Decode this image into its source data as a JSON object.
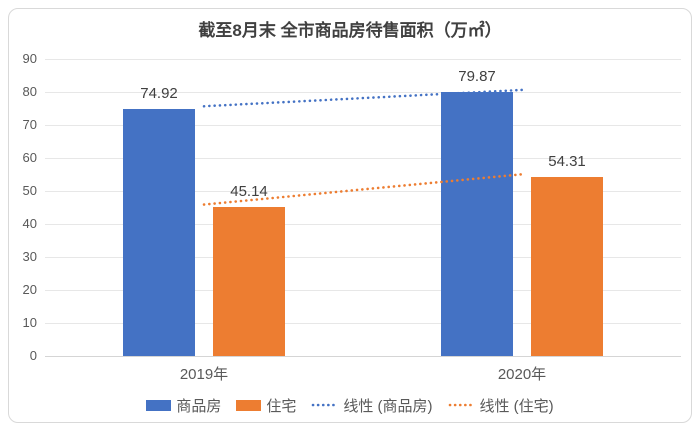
{
  "chart_data": {
    "type": "bar",
    "title": "截至8月末 全市商品房待售面积（万㎡）",
    "categories": [
      "2019年",
      "2020年"
    ],
    "series": [
      {
        "name": "商品房",
        "color": "#4472C4",
        "values": [
          74.92,
          79.87
        ],
        "labels": [
          "74.92",
          "79.87"
        ]
      },
      {
        "name": "住宅",
        "color": "#ED7D31",
        "values": [
          45.14,
          54.31
        ],
        "labels": [
          "45.14",
          "54.31"
        ]
      }
    ],
    "trendlines": [
      {
        "name": "线性 (商品房)",
        "color": "#4472C4",
        "series_index": 0
      },
      {
        "name": "线性 (住宅)",
        "color": "#ED7D31",
        "series_index": 1
      }
    ],
    "y_axis": {
      "min": 0,
      "max": 90,
      "step": 10,
      "ticks": [
        "0",
        "10",
        "20",
        "30",
        "40",
        "50",
        "60",
        "70",
        "80",
        "90"
      ]
    },
    "grid": true,
    "legend_position": "bottom"
  },
  "legend": {
    "items": [
      {
        "label": "商品房",
        "type": "rect",
        "color": "#4472C4"
      },
      {
        "label": "住宅",
        "type": "rect",
        "color": "#ED7D31"
      },
      {
        "label": "线性 (商品房)",
        "type": "dotted",
        "color": "#4472C4"
      },
      {
        "label": "线性 (住宅)",
        "type": "dotted",
        "color": "#ED7D31"
      }
    ]
  },
  "colors": {
    "blue": "#4472C4",
    "orange": "#ED7D31",
    "gridline": "#E7E7E7",
    "axis_line": "#D5D5D5",
    "text": "#595959",
    "title_text": "#404040",
    "card_border": "#D9D9D9"
  }
}
